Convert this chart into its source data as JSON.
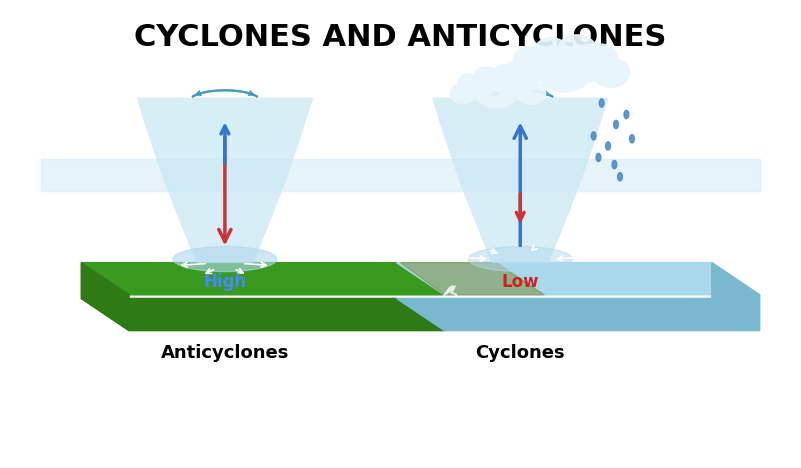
{
  "title": "CYCLONES AND ANTICYCLONES",
  "title_fontsize": 22,
  "title_fontweight": "bold",
  "label_anticyclone": "Anticyclones",
  "label_cyclone": "Cyclones",
  "label_high": "High",
  "label_low": "Low",
  "high_color": "#4488ff",
  "low_color": "#cc2222",
  "bg_color": "#ffffff",
  "ground_green": "#3a9a20",
  "ground_green_dark": "#2e7a15",
  "ground_blue": "#a8d8ea",
  "ground_blue_dark": "#7ab8d0",
  "vortex_color": "#c8e8f5",
  "vortex_alpha": 0.65,
  "sky_band_color": "#daeef8",
  "sky_band_alpha": 0.7,
  "arrow_down_color": "#cc3333",
  "arrow_up_color": "#3377cc",
  "rain_color": "#4488cc",
  "cloud_color": "#e8f5fc",
  "swirl_color": "#4499bb",
  "white_arrow_color": "white"
}
